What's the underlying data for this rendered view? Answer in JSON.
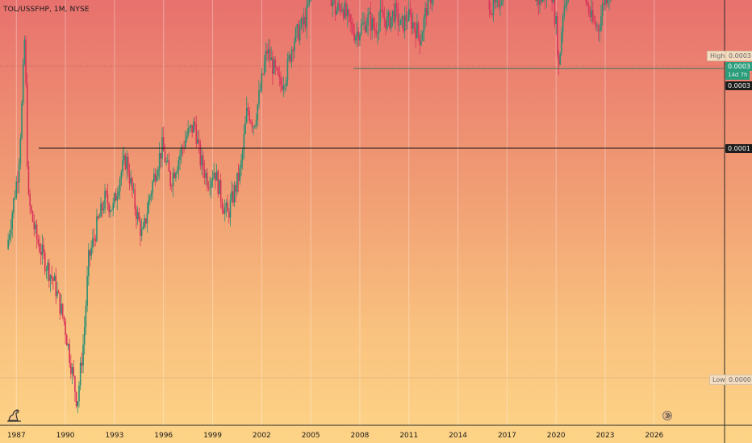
{
  "header": {
    "title": "TOL/USSFHP, 1M, NYSE"
  },
  "price_axis": {
    "high_label": "High",
    "high_value": "0.0003",
    "last_value": "0.0003",
    "countdown": "14d 7h",
    "dark_value": "0.0003",
    "level_value": "0.0001",
    "low_label": "Low",
    "low_value": "0.0000"
  },
  "colors": {
    "up": "#2a8f73",
    "down": "#d8355a",
    "line": "#111111",
    "highline": "#3a6f5a"
  },
  "icons": {
    "logo": "tradingview-dino-icon",
    "goto": "goto-realtime-icon"
  },
  "chart_data": {
    "type": "candlestick",
    "title": "TOL/USSFHP, 1M, NYSE",
    "x_ticks": [
      "1987",
      "1990",
      "1993",
      "1996",
      "1999",
      "2002",
      "2005",
      "2008",
      "2011",
      "2014",
      "2017",
      "2020",
      "2023",
      "2026"
    ],
    "x_range": [
      1986.0,
      2030.3
    ],
    "y_scale": "log",
    "y_range_log": [
      -0.78,
      1.1
    ],
    "anchors": [
      [
        1986.5,
        0.0
      ],
      [
        1986.9,
        0.2
      ],
      [
        1987.2,
        0.35
      ],
      [
        1987.4,
        0.6
      ],
      [
        1987.6,
        0.95
      ],
      [
        1987.8,
        0.22
      ],
      [
        1988.3,
        0.05
      ],
      [
        1988.8,
        -0.05
      ],
      [
        1989.4,
        -0.15
      ],
      [
        1990.0,
        -0.32
      ],
      [
        1990.4,
        -0.5
      ],
      [
        1990.8,
        -0.68
      ],
      [
        1991.2,
        -0.4
      ],
      [
        1991.5,
        -0.05
      ],
      [
        1992.0,
        0.1
      ],
      [
        1992.5,
        0.22
      ],
      [
        1993.0,
        0.18
      ],
      [
        1993.4,
        0.32
      ],
      [
        1993.8,
        0.4
      ],
      [
        1994.3,
        0.2
      ],
      [
        1994.8,
        0.05
      ],
      [
        1995.2,
        0.22
      ],
      [
        1995.6,
        0.35
      ],
      [
        1996.0,
        0.45
      ],
      [
        1996.5,
        0.3
      ],
      [
        1997.0,
        0.4
      ],
      [
        1997.5,
        0.5
      ],
      [
        1998.0,
        0.55
      ],
      [
        1998.3,
        0.4
      ],
      [
        1998.8,
        0.3
      ],
      [
        1999.2,
        0.35
      ],
      [
        1999.7,
        0.2
      ],
      [
        2000.0,
        0.15
      ],
      [
        2000.4,
        0.25
      ],
      [
        2000.8,
        0.35
      ],
      [
        2001.2,
        0.62
      ],
      [
        2001.6,
        0.55
      ],
      [
        2002.0,
        0.7
      ],
      [
        2002.4,
        0.88
      ],
      [
        2002.8,
        0.8
      ],
      [
        2003.2,
        0.72
      ],
      [
        2003.6,
        0.78
      ],
      [
        2004.0,
        0.92
      ],
      [
        2004.5,
        0.98
      ],
      [
        2004.8,
        1.02
      ],
      [
        2005.2,
        1.2
      ],
      [
        2005.5,
        1.3
      ],
      [
        2005.8,
        1.25
      ],
      [
        2006.2,
        1.15
      ],
      [
        2006.6,
        1.05
      ],
      [
        2007.0,
        1.08
      ],
      [
        2007.4,
        1.0
      ],
      [
        2007.8,
        0.95
      ],
      [
        2008.2,
        0.98
      ],
      [
        2008.6,
        1.02
      ],
      [
        2009.0,
        0.97
      ],
      [
        2009.4,
        1.03
      ],
      [
        2009.8,
        1.0
      ],
      [
        2010.2,
        1.05
      ],
      [
        2010.6,
        0.98
      ],
      [
        2011.0,
        1.03
      ],
      [
        2011.4,
        0.99
      ],
      [
        2011.8,
        0.93
      ],
      [
        2012.2,
        1.08
      ],
      [
        2012.6,
        1.15
      ],
      [
        2013.0,
        1.2
      ],
      [
        2013.4,
        1.28
      ],
      [
        2013.8,
        1.22
      ],
      [
        2014.2,
        1.18
      ],
      [
        2014.6,
        1.25
      ],
      [
        2015.0,
        1.22
      ],
      [
        2015.4,
        1.2
      ],
      [
        2015.8,
        1.15
      ],
      [
        2016.2,
        1.05
      ],
      [
        2016.6,
        1.1
      ],
      [
        2017.0,
        1.18
      ],
      [
        2017.4,
        1.2
      ],
      [
        2017.8,
        1.28
      ],
      [
        2018.2,
        1.25
      ],
      [
        2018.6,
        1.15
      ],
      [
        2019.0,
        1.1
      ],
      [
        2019.4,
        1.12
      ],
      [
        2019.8,
        1.15
      ],
      [
        2020.1,
        0.98
      ],
      [
        2020.25,
        0.8
      ],
      [
        2020.5,
        1.05
      ],
      [
        2020.8,
        1.15
      ],
      [
        2021.2,
        1.2
      ],
      [
        2021.6,
        1.25
      ],
      [
        2021.9,
        1.1
      ],
      [
        2022.3,
        1.0
      ],
      [
        2022.7,
        0.98
      ],
      [
        2023.0,
        1.1
      ],
      [
        2023.4,
        1.15
      ],
      [
        2023.8,
        1.23
      ],
      [
        2024.0,
        1.3
      ],
      [
        2024.2,
        1.36
      ]
    ],
    "horizontal_lines": [
      {
        "kind": "high",
        "value": 0.0003
      },
      {
        "kind": "level",
        "value": 0.0001
      },
      {
        "kind": "low",
        "value": 0.0
      }
    ],
    "grid": true
  }
}
